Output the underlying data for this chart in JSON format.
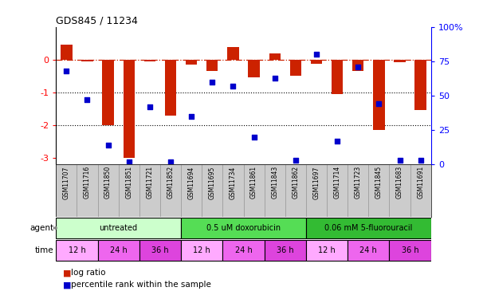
{
  "title": "GDS845 / 11234",
  "samples": [
    "GSM11707",
    "GSM11716",
    "GSM11850",
    "GSM11851",
    "GSM11721",
    "GSM11852",
    "GSM11694",
    "GSM11695",
    "GSM11734",
    "GSM11861",
    "GSM11843",
    "GSM11862",
    "GSM11697",
    "GSM11714",
    "GSM11723",
    "GSM11845",
    "GSM11683",
    "GSM11691"
  ],
  "log_ratio": [
    0.45,
    -0.05,
    -2.0,
    -3.0,
    -0.05,
    -1.7,
    -0.15,
    -0.35,
    0.38,
    -0.55,
    0.18,
    -0.5,
    -0.12,
    -1.05,
    -0.35,
    -2.15,
    -0.08,
    -1.55
  ],
  "percentile": [
    68,
    47,
    14,
    2,
    42,
    2,
    35,
    60,
    57,
    20,
    63,
    3,
    80,
    17,
    71,
    44,
    3,
    3
  ],
  "agents": [
    {
      "label": "untreated",
      "start": 0,
      "end": 6,
      "color": "#ccffcc"
    },
    {
      "label": "0.5 uM doxorubicin",
      "start": 6,
      "end": 12,
      "color": "#55dd55"
    },
    {
      "label": "0.06 mM 5-fluorouracil",
      "start": 12,
      "end": 18,
      "color": "#33bb33"
    }
  ],
  "times": [
    {
      "label": "12 h",
      "start": 0,
      "end": 2,
      "color": "#ffaaff"
    },
    {
      "label": "24 h",
      "start": 2,
      "end": 4,
      "color": "#ee66ee"
    },
    {
      "label": "36 h",
      "start": 4,
      "end": 6,
      "color": "#dd44dd"
    },
    {
      "label": "12 h",
      "start": 6,
      "end": 8,
      "color": "#ffaaff"
    },
    {
      "label": "24 h",
      "start": 8,
      "end": 10,
      "color": "#ee66ee"
    },
    {
      "label": "36 h",
      "start": 10,
      "end": 12,
      "color": "#dd44dd"
    },
    {
      "label": "12 h",
      "start": 12,
      "end": 14,
      "color": "#ffaaff"
    },
    {
      "label": "24 h",
      "start": 14,
      "end": 16,
      "color": "#ee66ee"
    },
    {
      "label": "36 h",
      "start": 16,
      "end": 18,
      "color": "#dd44dd"
    }
  ],
  "bar_color": "#cc2200",
  "dot_color": "#0000cc",
  "ylim_left": [
    -3.2,
    1.0
  ],
  "ylim_right": [
    0,
    100
  ],
  "yticks_left": [
    -3,
    -2,
    -1,
    0
  ],
  "yticks_right": [
    0,
    25,
    50,
    75,
    100
  ],
  "background_color": "#ffffff",
  "bar_width": 0.55
}
